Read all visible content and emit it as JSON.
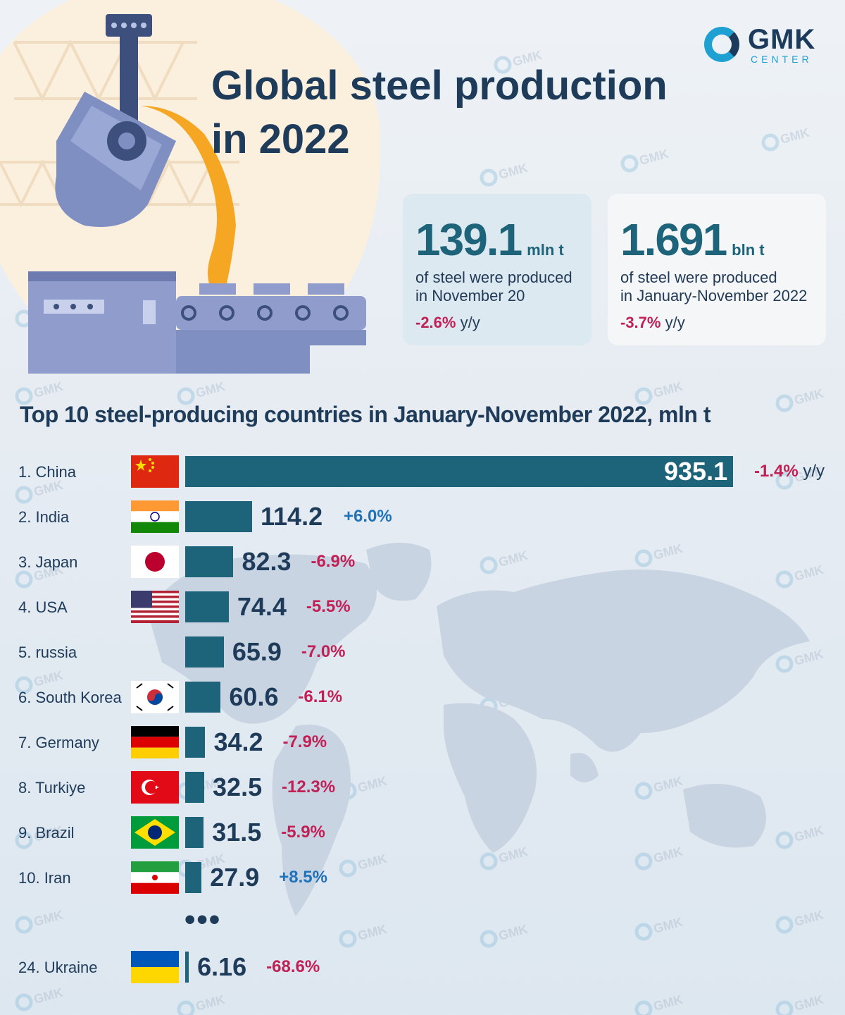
{
  "logo": {
    "brand": "GMK",
    "sub": "CENTER"
  },
  "title_line1": "Global steel production",
  "title_line2": "in 2022",
  "stats": {
    "november": {
      "value": "139.1",
      "unit": "mln t",
      "desc1": "of steel were produced",
      "desc2": "in November 20",
      "change": "-2.6%",
      "change_suffix": "y/y"
    },
    "year": {
      "value": "1.691",
      "unit": "bln t",
      "desc1": "of steel were produced",
      "desc2": "in January-November 2022",
      "change": "-3.7%",
      "change_suffix": "y/y"
    }
  },
  "chart_data": {
    "type": "bar",
    "title": "Top 10 steel-producing countries in January-November 2022, mln t",
    "categories": [
      "1. China",
      "2. India",
      "3. Japan",
      "4. USA",
      "5. russia",
      "6. South Korea",
      "7. Germany",
      "8. Turkiye",
      "9. Brazil",
      "10. Iran",
      "24. Ukraine"
    ],
    "values": [
      935.1,
      114.2,
      82.3,
      74.4,
      65.9,
      60.6,
      34.2,
      32.5,
      31.5,
      27.9,
      6.16
    ],
    "value_labels": [
      "935.1",
      "114.2",
      "82.3",
      "74.4",
      "65.9",
      "60.6",
      "34.2",
      "32.5",
      "31.5",
      "27.9",
      "6.16"
    ],
    "changes": [
      "-1.4%",
      "+6.0%",
      "-6.9%",
      "-5.5%",
      "-7.0%",
      "-6.1%",
      "-7.9%",
      "-12.3%",
      "-5.9%",
      "+8.5%",
      "-68.6%"
    ],
    "first_change_suffix": "y/y",
    "ellipsis": "•••",
    "flags": [
      "china-flag",
      "india-flag",
      "japan-flag",
      "usa-flag",
      "",
      "south-korea-flag",
      "germany-flag",
      "turkiye-flag",
      "brazil-flag",
      "iran-flag",
      "ukraine-flag"
    ],
    "colors": {
      "bar": "#1d6379",
      "negative": "#c21f55",
      "positive": "#1f72b8"
    }
  }
}
